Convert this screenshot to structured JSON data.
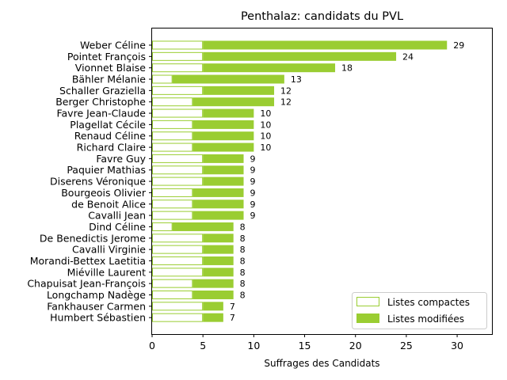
{
  "chart_data": {
    "type": "bar",
    "orientation": "horizontal",
    "stacked": true,
    "title": "Penthalaz: candidats du PVL",
    "xlabel": "Suffrages des Candidats",
    "ylabel": "",
    "xlim": [
      0,
      33.5
    ],
    "xticks": [
      0,
      5,
      10,
      15,
      20,
      25,
      30
    ],
    "grid": false,
    "legend_position": "bottom-right",
    "colors": {
      "accent": "#9acd32",
      "compact_fill": "#ffffff",
      "compact_edge": "#9acd32"
    },
    "categories": [
      "Weber Céline",
      "Pointet François",
      "Vionnet Blaise",
      "Bähler Mélanie",
      "Schaller Graziella",
      "Berger Christophe",
      "Favre Jean-Claude",
      "Plagellat Cécile",
      "Renaud Céline",
      "Richard Claire",
      "Favre Guy",
      "Paquier Mathias",
      "Diserens Véronique",
      "Bourgeois Olivier",
      "de Benoit Alice",
      "Cavalli Jean",
      "Dind Céline",
      "De Benedictis Jerome",
      "Cavalli Virginie",
      "Morandi-Bettex Laetitia",
      "Miéville Laurent",
      "Chapuisat Jean-François",
      "Longchamp Nadège",
      "Fankhauser Carmen",
      "Humbert Sébastien"
    ],
    "series": [
      {
        "name": "Listes compactes",
        "values": [
          5,
          5,
          5,
          2,
          5,
          4,
          5,
          4,
          4,
          4,
          5,
          5,
          5,
          4,
          4,
          4,
          2,
          5,
          5,
          5,
          5,
          4,
          4,
          5,
          5
        ]
      },
      {
        "name": "Listes modifiées",
        "values": [
          24,
          19,
          13,
          11,
          7,
          8,
          5,
          6,
          6,
          6,
          4,
          4,
          4,
          5,
          5,
          5,
          6,
          3,
          3,
          3,
          3,
          4,
          4,
          2,
          2
        ]
      }
    ],
    "totals": [
      29,
      24,
      18,
      13,
      12,
      12,
      10,
      10,
      10,
      10,
      9,
      9,
      9,
      9,
      9,
      9,
      8,
      8,
      8,
      8,
      8,
      8,
      8,
      7,
      7
    ]
  }
}
